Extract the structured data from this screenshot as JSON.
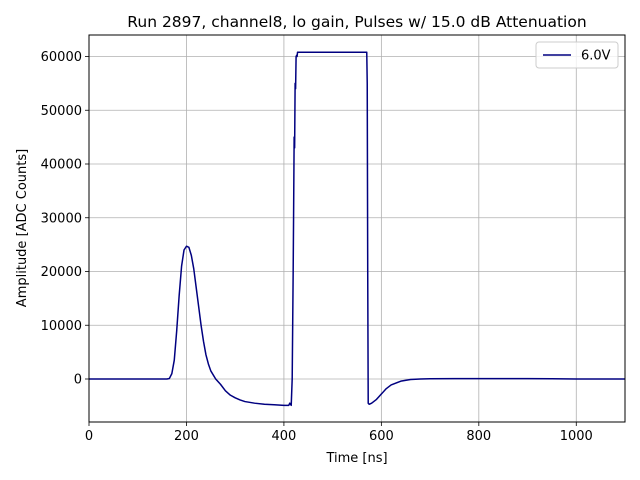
{
  "chart_data": {
    "type": "line",
    "title": "Run 2897, channel8, lo gain, Pulses w/ 15.0 dB Attenuation",
    "xlabel": "Time [ns]",
    "ylabel": "Amplitude [ADC Counts]",
    "xlim": [
      0,
      1100
    ],
    "ylim": [
      -8000,
      64000
    ],
    "xticks": [
      0,
      200,
      400,
      600,
      800,
      1000
    ],
    "yticks": [
      0,
      10000,
      20000,
      30000,
      40000,
      50000,
      60000
    ],
    "grid": true,
    "legend_position": "top-right",
    "series": [
      {
        "name": "6.0V",
        "color": "#000080",
        "x": [
          0,
          150,
          160,
          165,
          170,
          175,
          180,
          185,
          190,
          195,
          200,
          205,
          210,
          215,
          220,
          225,
          230,
          235,
          240,
          245,
          250,
          260,
          270,
          280,
          290,
          300,
          310,
          320,
          340,
          360,
          380,
          400,
          410,
          412,
          415,
          417,
          418,
          419,
          420,
          421,
          422,
          423,
          424,
          425,
          426,
          427,
          428,
          430,
          432,
          435,
          570,
          571,
          572,
          573,
          575,
          580,
          590,
          600,
          610,
          620,
          640,
          660,
          680,
          700,
          750,
          800,
          850,
          900,
          950,
          1000,
          1050,
          1100
        ],
        "y": [
          0,
          0,
          0,
          100,
          1000,
          3500,
          9000,
          15500,
          21000,
          24000,
          24700,
          24500,
          23000,
          20500,
          17000,
          13500,
          10000,
          7000,
          4500,
          2800,
          1500,
          0,
          -1000,
          -2200,
          -3000,
          -3500,
          -3900,
          -4200,
          -4500,
          -4700,
          -4800,
          -4900,
          -4900,
          -4500,
          -4900,
          0,
          10000,
          20000,
          32000,
          45000,
          43000,
          55000,
          54000,
          60000,
          60200,
          60000,
          60800,
          60800,
          60800,
          60800,
          60800,
          55000,
          20000,
          -4500,
          -4700,
          -4500,
          -3800,
          -2800,
          -1800,
          -1100,
          -400,
          -100,
          0,
          50,
          80,
          80,
          80,
          70,
          50,
          0,
          0,
          0
        ]
      }
    ]
  }
}
